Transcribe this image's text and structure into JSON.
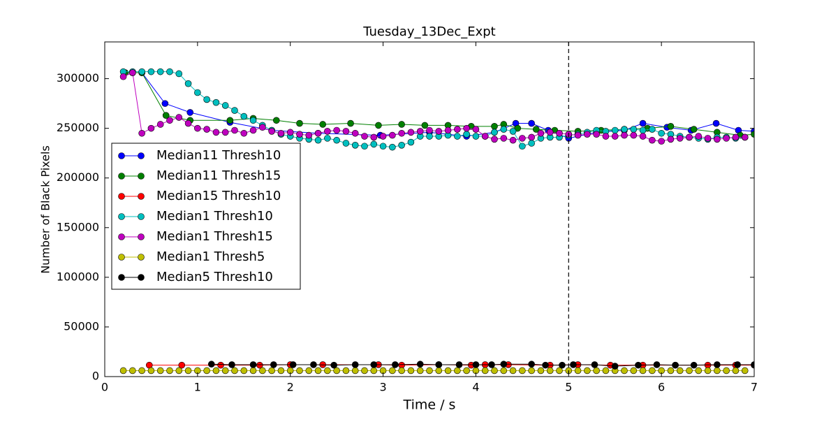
{
  "chart_data": {
    "type": "line",
    "title": "Tuesday_13Dec_Expt",
    "x_label": "Time / s",
    "y_label": "Number of Black Pixels",
    "xlim": [
      0,
      7
    ],
    "ylim": [
      0,
      337000
    ],
    "xticks": [
      0,
      1,
      2,
      3,
      4,
      5,
      6,
      7
    ],
    "yticks": [
      0,
      50000,
      100000,
      150000,
      200000,
      250000,
      300000
    ],
    "vline": 5,
    "legend": "center left",
    "series": [
      {
        "name": "Median11 Thresh10",
        "color": "#0000ff",
        "x": [
          0.22,
          0.3,
          0.4,
          0.65,
          0.92,
          1.35,
          1.8,
          2.3,
          2.97,
          3.5,
          3.9,
          4.2,
          4.43,
          4.6,
          4.78,
          5.0,
          5.3,
          5.6,
          5.8,
          6.06,
          6.32,
          6.59,
          6.83,
          7.0
        ],
        "values": [
          306000,
          306000,
          306000,
          275000,
          266000,
          256000,
          248000,
          245000,
          243000,
          246000,
          242000,
          246000,
          255000,
          255000,
          248000,
          240000,
          246000,
          248000,
          255000,
          251000,
          248000,
          255000,
          248000,
          247000
        ]
      },
      {
        "name": "Median11 Thresh15",
        "color": "#008000",
        "x": [
          0.22,
          0.4,
          0.66,
          0.92,
          1.35,
          1.6,
          1.85,
          2.1,
          2.35,
          2.65,
          2.95,
          3.2,
          3.45,
          3.7,
          3.95,
          4.2,
          4.3,
          4.45,
          4.65,
          4.85,
          5.1,
          5.35,
          5.6,
          5.85,
          6.1,
          6.35,
          6.6,
          6.85,
          7.0
        ],
        "values": [
          306000,
          306000,
          263000,
          258000,
          258000,
          260000,
          258000,
          255000,
          254000,
          255000,
          253000,
          254000,
          253000,
          253000,
          252000,
          252000,
          254000,
          250000,
          249000,
          248000,
          247000,
          248000,
          249000,
          250000,
          252000,
          249000,
          246000,
          243000,
          244000
        ]
      },
      {
        "name": "Median15 Thresh10",
        "color": "#ff0000",
        "x": [
          0.48,
          0.83,
          1.25,
          1.67,
          2.0,
          2.35,
          2.95,
          3.2,
          3.6,
          3.95,
          4.1,
          4.35,
          4.8,
          5.1,
          5.45,
          5.8,
          6.15,
          6.5,
          6.8,
          7.0
        ],
        "values": [
          11500,
          11500,
          11500,
          11500,
          12000,
          12000,
          12000,
          11500,
          12000,
          11500,
          12000,
          12000,
          11500,
          12000,
          11500,
          11500,
          11500,
          11500,
          11500,
          11500
        ]
      },
      {
        "name": "Median1 Thresh10",
        "color": "#00bfbf",
        "x": [
          0.2,
          0.3,
          0.4,
          0.5,
          0.6,
          0.7,
          0.8,
          0.9,
          1.0,
          1.1,
          1.2,
          1.3,
          1.4,
          1.5,
          1.6,
          1.7,
          1.8,
          1.9,
          2.0,
          2.1,
          2.2,
          2.3,
          2.4,
          2.5,
          2.6,
          2.7,
          2.8,
          2.9,
          3.0,
          3.1,
          3.2,
          3.3,
          3.4,
          3.5,
          3.6,
          3.7,
          3.8,
          3.9,
          4.0,
          4.1,
          4.2,
          4.3,
          4.4,
          4.5,
          4.6,
          4.7,
          4.8,
          4.9,
          5.0,
          5.1,
          5.2,
          5.3,
          5.4,
          5.5,
          5.6,
          5.7,
          5.8,
          5.9,
          6.0,
          6.1,
          6.2,
          6.3,
          6.4,
          6.5,
          6.6,
          6.7,
          6.8,
          6.9
        ],
        "values": [
          307000,
          307000,
          307000,
          307000,
          307000,
          307000,
          305000,
          295000,
          286000,
          279000,
          276000,
          273000,
          268000,
          262000,
          258000,
          253000,
          248000,
          244000,
          242000,
          240000,
          239000,
          238000,
          240000,
          238000,
          235000,
          233000,
          232000,
          234000,
          232000,
          231000,
          233000,
          236000,
          242000,
          242000,
          242000,
          243000,
          242000,
          244000,
          242000,
          242000,
          246000,
          249000,
          247000,
          232000,
          235000,
          240000,
          241000,
          241000,
          243000,
          244000,
          246000,
          248000,
          247000,
          248000,
          249000,
          249000,
          248000,
          249000,
          245000,
          244000,
          242000,
          241000,
          240000,
          239000,
          241000,
          241000,
          240000,
          241000
        ]
      },
      {
        "name": "Median1 Thresh15",
        "color": "#bf00bf",
        "x": [
          0.2,
          0.3,
          0.4,
          0.5,
          0.6,
          0.7,
          0.8,
          0.9,
          1.0,
          1.1,
          1.2,
          1.3,
          1.4,
          1.5,
          1.6,
          1.7,
          1.8,
          1.9,
          2.0,
          2.1,
          2.2,
          2.3,
          2.4,
          2.5,
          2.6,
          2.7,
          2.8,
          2.9,
          3.0,
          3.1,
          3.2,
          3.3,
          3.4,
          3.5,
          3.6,
          3.7,
          3.8,
          3.9,
          4.0,
          4.1,
          4.2,
          4.3,
          4.4,
          4.5,
          4.6,
          4.7,
          4.8,
          4.9,
          5.0,
          5.1,
          5.2,
          5.3,
          5.4,
          5.5,
          5.6,
          5.7,
          5.8,
          5.9,
          6.0,
          6.1,
          6.2,
          6.3,
          6.4,
          6.5,
          6.6,
          6.7,
          6.8,
          6.9
        ],
        "values": [
          302000,
          306000,
          245000,
          250000,
          254000,
          258000,
          261000,
          255000,
          250000,
          249000,
          246000,
          246000,
          248000,
          245000,
          248000,
          251000,
          247000,
          245000,
          246000,
          244000,
          243000,
          245000,
          247000,
          248000,
          247000,
          245000,
          242000,
          241000,
          242000,
          243000,
          245000,
          246000,
          247000,
          248000,
          247000,
          248000,
          249000,
          250000,
          249000,
          242000,
          239000,
          240000,
          238000,
          240000,
          241000,
          245000,
          246000,
          245000,
          244000,
          243000,
          244000,
          244000,
          242000,
          242000,
          243000,
          243000,
          242000,
          238000,
          237000,
          239000,
          240000,
          241000,
          242000,
          240000,
          239000,
          240000,
          241000,
          241000
        ]
      },
      {
        "name": "Median1 Thresh5",
        "color": "#bfbf00",
        "x": [
          0.2,
          0.3,
          0.4,
          0.5,
          0.6,
          0.7,
          0.8,
          0.9,
          1.0,
          1.1,
          1.2,
          1.3,
          1.4,
          1.5,
          1.6,
          1.7,
          1.8,
          1.9,
          2.0,
          2.1,
          2.2,
          2.3,
          2.4,
          2.5,
          2.6,
          2.7,
          2.8,
          2.9,
          3.0,
          3.1,
          3.2,
          3.3,
          3.4,
          3.5,
          3.6,
          3.7,
          3.8,
          3.9,
          4.0,
          4.1,
          4.2,
          4.3,
          4.4,
          4.5,
          4.6,
          4.7,
          4.8,
          4.9,
          5.0,
          5.1,
          5.2,
          5.3,
          5.4,
          5.5,
          5.6,
          5.7,
          5.8,
          5.9,
          6.0,
          6.1,
          6.2,
          6.3,
          6.4,
          6.5,
          6.6,
          6.7,
          6.8,
          6.9
        ],
        "values": [
          6000,
          6000,
          6000,
          6000,
          6000,
          6000,
          6000,
          6000,
          6000,
          6000,
          6000,
          6000,
          6000,
          6000,
          6000,
          6000,
          6000,
          6000,
          6000,
          6000,
          6000,
          6000,
          6000,
          6000,
          6000,
          6000,
          6000,
          6000,
          6000,
          6000,
          6000,
          6000,
          6000,
          6000,
          6000,
          6000,
          6000,
          6000,
          6000,
          6000,
          6000,
          6000,
          6000,
          6000,
          6000,
          6000,
          6000,
          6000,
          6000,
          6000,
          6000,
          6000,
          6000,
          6000,
          6000,
          6000,
          6000,
          6000,
          6000,
          6000,
          6000,
          6000,
          6000,
          6000,
          6000,
          6000,
          6000,
          6000
        ]
      },
      {
        "name": "Median5 Thresh10",
        "color": "#000000",
        "x": [
          1.15,
          1.37,
          1.6,
          1.82,
          2.03,
          2.25,
          2.47,
          2.7,
          2.9,
          3.13,
          3.4,
          3.6,
          3.82,
          4.0,
          4.17,
          4.3,
          4.6,
          4.75,
          4.93,
          5.05,
          5.28,
          5.5,
          5.75,
          5.95,
          6.15,
          6.35,
          6.6,
          6.82,
          7.0
        ],
        "values": [
          12500,
          12000,
          12000,
          12000,
          12000,
          12000,
          11500,
          12000,
          12000,
          12000,
          12500,
          12000,
          12000,
          12000,
          12000,
          12500,
          12500,
          11500,
          11500,
          12000,
          12000,
          10500,
          11500,
          12000,
          11500,
          11500,
          12000,
          12000,
          12000
        ]
      }
    ]
  }
}
